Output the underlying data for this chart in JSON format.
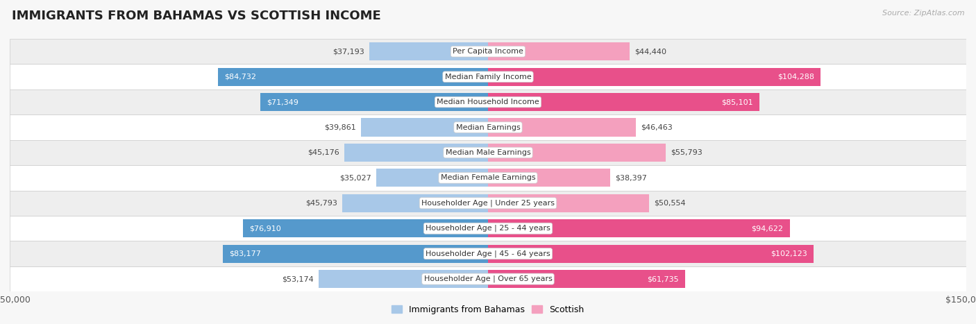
{
  "title": "IMMIGRANTS FROM BAHAMAS VS SCOTTISH INCOME",
  "source": "Source: ZipAtlas.com",
  "categories": [
    "Per Capita Income",
    "Median Family Income",
    "Median Household Income",
    "Median Earnings",
    "Median Male Earnings",
    "Median Female Earnings",
    "Householder Age | Under 25 years",
    "Householder Age | 25 - 44 years",
    "Householder Age | 45 - 64 years",
    "Householder Age | Over 65 years"
  ],
  "bahamas_values": [
    37193,
    84732,
    71349,
    39861,
    45176,
    35027,
    45793,
    76910,
    83177,
    53174
  ],
  "scottish_values": [
    44440,
    104288,
    85101,
    46463,
    55793,
    38397,
    50554,
    94622,
    102123,
    61735
  ],
  "max_val": 150000,
  "bahamas_color_light": "#a8c8e8",
  "bahamas_color_dark": "#5599cc",
  "scottish_color_light": "#f4a0be",
  "scottish_color_dark": "#e8508a",
  "bg_color": "#f7f7f7",
  "row_bg_light": "#f0f0f0",
  "row_bg_dark": "#e8e8e8",
  "row_border": "#d8d8d8",
  "legend_bahamas": "Immigrants from Bahamas",
  "legend_scottish": "Scottish",
  "dark_threshold": 60000,
  "title_fontsize": 13,
  "label_fontsize": 8,
  "value_fontsize": 8
}
